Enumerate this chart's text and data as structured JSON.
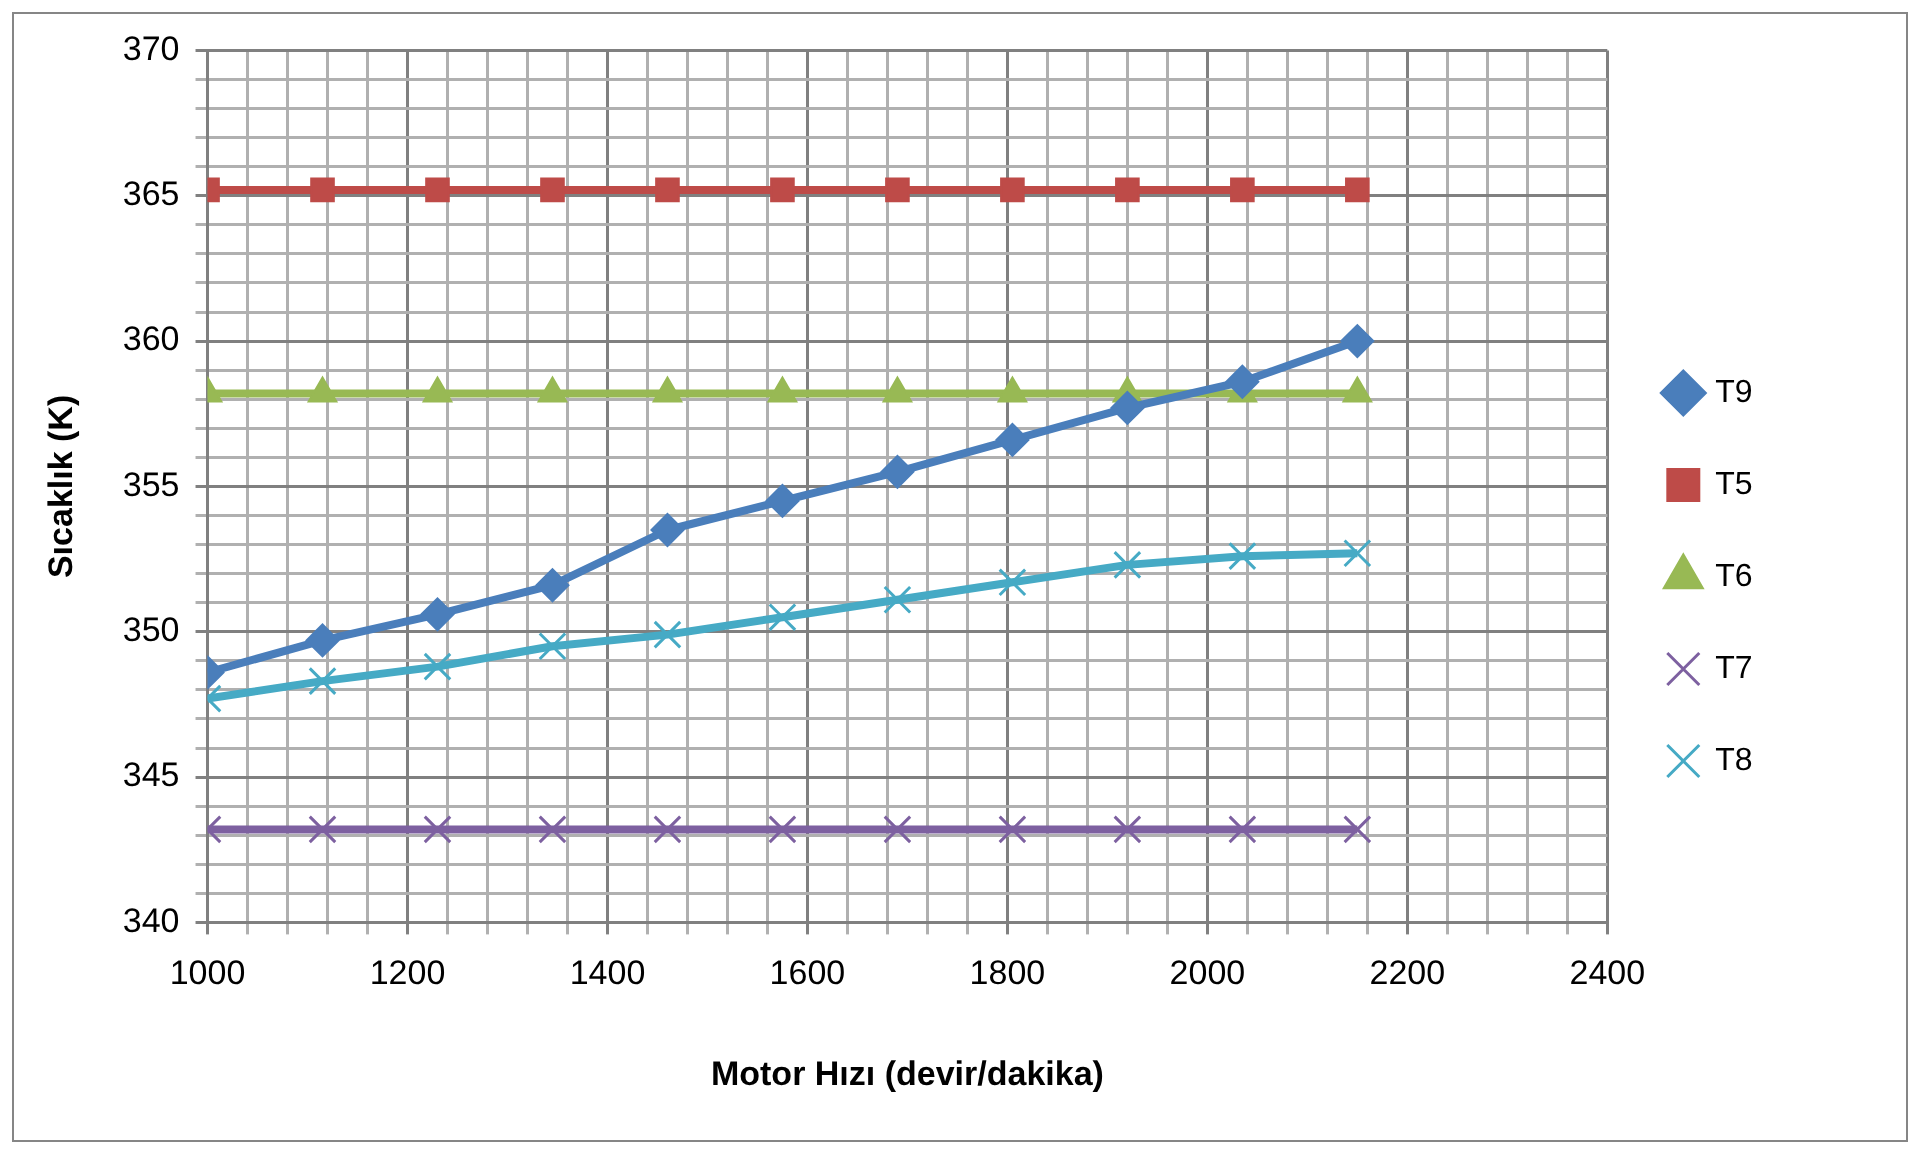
{
  "chart_data": {
    "type": "line",
    "xlabel": "Motor Hızı (devir/dakika)",
    "ylabel": "Sıcaklık (K)",
    "x": [
      1000,
      1115,
      1230,
      1345,
      1460,
      1575,
      1690,
      1805,
      1920,
      2035,
      2150
    ],
    "series": [
      {
        "name": "T9",
        "color": "#4a7ebb",
        "marker": "diamond",
        "values": [
          348.6,
          349.7,
          350.6,
          351.6,
          353.5,
          354.5,
          355.5,
          356.6,
          357.7,
          358.6,
          360.0
        ]
      },
      {
        "name": "T5",
        "color": "#be4b48",
        "marker": "square",
        "values": [
          365.2,
          365.2,
          365.2,
          365.2,
          365.2,
          365.2,
          365.2,
          365.2,
          365.2,
          365.2,
          365.2
        ]
      },
      {
        "name": "T6",
        "color": "#98b954",
        "marker": "triangle",
        "values": [
          358.2,
          358.2,
          358.2,
          358.2,
          358.2,
          358.2,
          358.2,
          358.2,
          358.2,
          358.2,
          358.2
        ]
      },
      {
        "name": "T7",
        "color": "#7d60a0",
        "marker": "cross",
        "values": [
          343.2,
          343.2,
          343.2,
          343.2,
          343.2,
          343.2,
          343.2,
          343.2,
          343.2,
          343.2,
          343.2
        ]
      },
      {
        "name": "T8",
        "color": "#46aac5",
        "marker": "cross",
        "values": [
          347.7,
          348.3,
          348.8,
          349.5,
          349.9,
          350.5,
          351.1,
          351.7,
          352.3,
          352.6,
          352.7
        ]
      }
    ],
    "xlim": [
      1000,
      2400
    ],
    "xticks": [
      1000,
      {
        "value": 1040,
        "label": null
      },
      {
        "value": 1080,
        "label": null
      },
      {
        "value": 1120,
        "label": null
      },
      {
        "value": 1160,
        "label": null
      },
      1200,
      {
        "value": 1240,
        "label": null
      },
      {
        "value": 1280,
        "label": null
      },
      {
        "value": 1320,
        "label": null
      },
      {
        "value": 1360,
        "label": null
      },
      1400,
      {
        "value": 1440,
        "label": null
      },
      {
        "value": 1480,
        "label": null
      },
      {
        "value": 1520,
        "label": null
      },
      {
        "value": 1560,
        "label": null
      },
      1600,
      {
        "value": 1640,
        "label": null
      },
      {
        "value": 1680,
        "label": null
      },
      {
        "value": 1720,
        "label": null
      },
      {
        "value": 1760,
        "label": null
      },
      1800,
      {
        "value": 1840,
        "label": null
      },
      {
        "value": 1880,
        "label": null
      },
      {
        "value": 1920,
        "label": null
      },
      {
        "value": 1960,
        "label": null
      },
      2000,
      {
        "value": 2040,
        "label": null
      },
      {
        "value": 2080,
        "label": null
      },
      {
        "value": 2120,
        "label": null
      },
      {
        "value": 2160,
        "label": null
      },
      2200,
      {
        "value": 2240,
        "label": null
      },
      {
        "value": 2280,
        "label": null
      },
      {
        "value": 2320,
        "label": null
      },
      {
        "value": 2360,
        "label": null
      },
      2400
    ],
    "ylim": [
      340,
      370
    ],
    "yticks": [
      340,
      {
        "value": 341,
        "label": null
      },
      {
        "value": 342,
        "label": null
      },
      {
        "value": 343,
        "label": null
      },
      {
        "value": 344,
        "label": null
      },
      345,
      {
        "value": 346,
        "label": null
      },
      {
        "value": 347,
        "label": null
      },
      {
        "value": 348,
        "label": null
      },
      {
        "value": 349,
        "label": null
      },
      350,
      {
        "value": 351,
        "label": null
      },
      {
        "value": 352,
        "label": null
      },
      {
        "value": 353,
        "label": null
      },
      {
        "value": 354,
        "label": null
      },
      355,
      {
        "value": 356,
        "label": null
      },
      {
        "value": 357,
        "label": null
      },
      {
        "value": 358,
        "label": null
      },
      {
        "value": 359,
        "label": null
      },
      360,
      {
        "value": 361,
        "label": null
      },
      {
        "value": 362,
        "label": null
      },
      {
        "value": 363,
        "label": null
      },
      {
        "value": 364,
        "label": null
      },
      365,
      {
        "value": 366,
        "label": null
      },
      {
        "value": 367,
        "label": null
      },
      {
        "value": 368,
        "label": null
      },
      {
        "value": 369,
        "label": null
      },
      370
    ],
    "grid": true,
    "legend": "right",
    "line_style": "solid"
  }
}
